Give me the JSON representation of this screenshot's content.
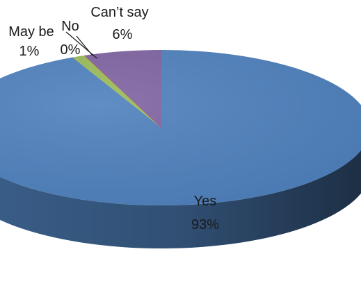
{
  "chart_data": {
    "type": "pie",
    "title": "",
    "title_fragment": "",
    "three_d": true,
    "legend": "none",
    "slices": [
      {
        "label": "Yes",
        "value": 93,
        "percent_label": "93%",
        "color": "#4f81bd"
      },
      {
        "label": "May be",
        "value": 1,
        "percent_label": "1%",
        "color": "#9bbb59"
      },
      {
        "label": "No",
        "value": 0,
        "percent_label": "0%",
        "color": "#c0504d"
      },
      {
        "label": "Can’t say",
        "value": 6,
        "percent_label": "6%",
        "color": "#8064a2"
      }
    ]
  }
}
